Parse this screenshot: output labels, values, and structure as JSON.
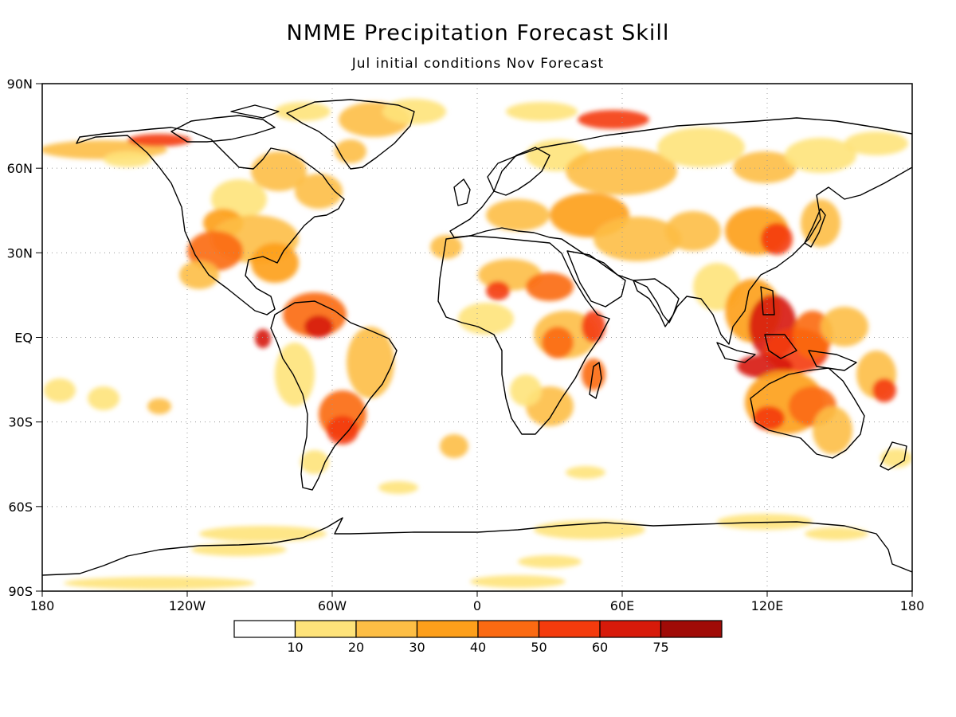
{
  "map": {
    "title": "NMME Precipitation Forecast Skill",
    "subtitle": "Jul initial conditions   Nov Forecast",
    "lat_ticks": [
      "90N",
      "60N",
      "30N",
      "EQ",
      "30S",
      "60S",
      "90S"
    ],
    "lon_ticks": [
      "180",
      "120W",
      "60W",
      "0",
      "60E",
      "120E",
      "180"
    ],
    "colorbar": {
      "labels": [
        "10",
        "20",
        "30",
        "40",
        "50",
        "60",
        "75"
      ],
      "colors": [
        "#ffffff",
        "#fee37a",
        "#fdbe45",
        "#fd9f1b",
        "#fb6a12",
        "#f43b0d",
        "#d71a0a",
        "#a00b07"
      ]
    },
    "colors": {
      "coast": "#000000",
      "grid": "#999999"
    }
  }
}
